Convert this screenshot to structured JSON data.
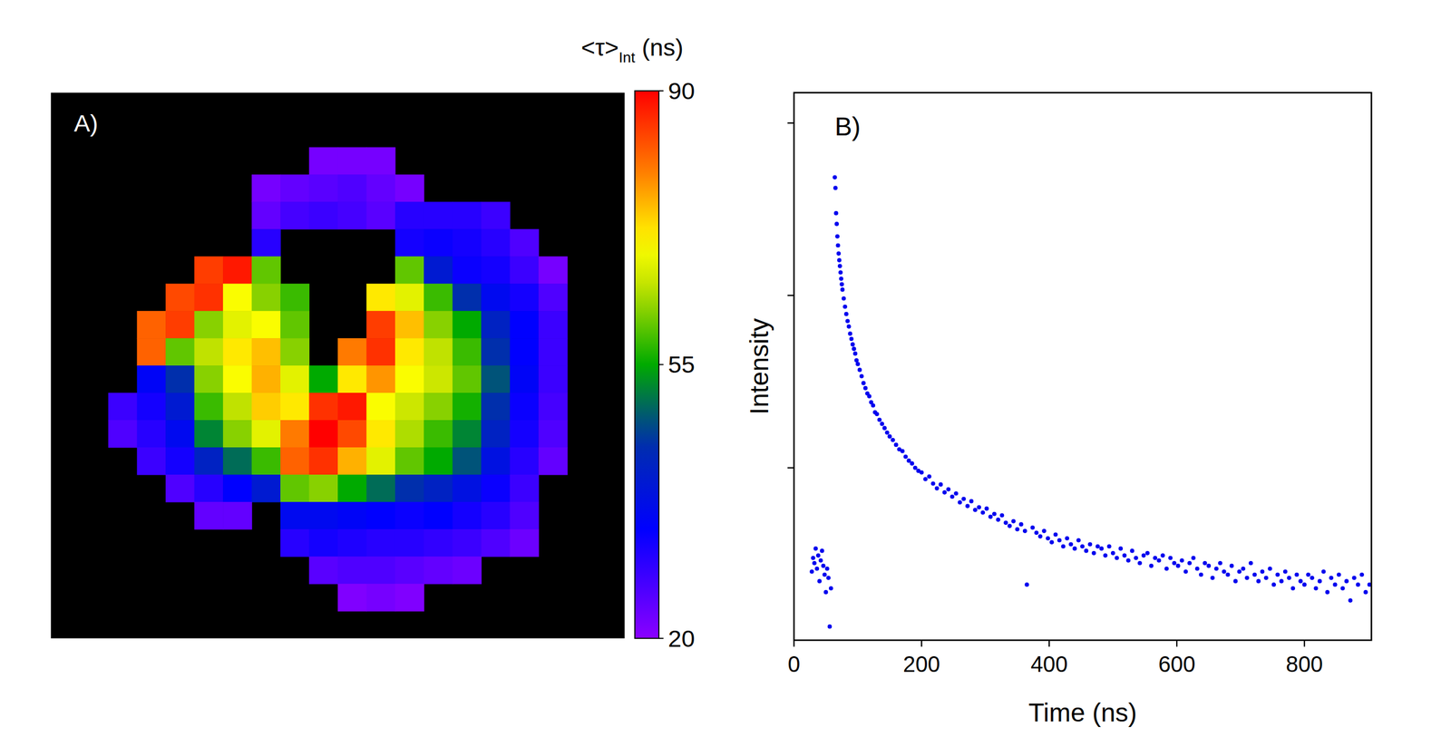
{
  "chart_data": [
    {
      "type": "heatmap",
      "title": "A)",
      "tick_labels": false,
      "colorbar": {
        "label": "<τ>",
        "label_sub": "Int",
        "label_unit": " (ns)",
        "range": [
          20,
          90
        ],
        "ticks": [
          20,
          55,
          90
        ]
      },
      "cells": [
        [
          null,
          null,
          null,
          null,
          null,
          null,
          null,
          null,
          null,
          null,
          null,
          null,
          null,
          null,
          null,
          null,
          null,
          null,
          null,
          null
        ],
        [
          null,
          null,
          null,
          null,
          null,
          null,
          null,
          null,
          null,
          null,
          null,
          null,
          null,
          null,
          null,
          null,
          null,
          null,
          null,
          null
        ],
        [
          null,
          null,
          null,
          null,
          null,
          null,
          null,
          null,
          null,
          22,
          22,
          22,
          null,
          null,
          null,
          null,
          null,
          null,
          null,
          null
        ],
        [
          null,
          null,
          null,
          null,
          null,
          null,
          null,
          22,
          24,
          25,
          26,
          24,
          22,
          null,
          null,
          null,
          null,
          null,
          null,
          null
        ],
        [
          null,
          null,
          null,
          null,
          null,
          null,
          null,
          24,
          27,
          28,
          27,
          25,
          30,
          30,
          30,
          28,
          null,
          null,
          null,
          null
        ],
        [
          null,
          null,
          null,
          null,
          null,
          null,
          null,
          30,
          null,
          null,
          null,
          null,
          32,
          33,
          32,
          30,
          26,
          null,
          null,
          null
        ],
        [
          null,
          null,
          null,
          null,
          null,
          85,
          88,
          60,
          null,
          null,
          null,
          null,
          60,
          40,
          33,
          32,
          28,
          22,
          null,
          null
        ],
        [
          null,
          null,
          null,
          null,
          84,
          86,
          70,
          62,
          58,
          null,
          null,
          72,
          68,
          58,
          45,
          36,
          32,
          26,
          null,
          null
        ],
        [
          null,
          null,
          null,
          82,
          85,
          62,
          68,
          70,
          60,
          null,
          null,
          85,
          75,
          62,
          55,
          42,
          34,
          28,
          null,
          null
        ],
        [
          null,
          null,
          null,
          82,
          60,
          65,
          72,
          75,
          62,
          null,
          80,
          86,
          72,
          65,
          58,
          45,
          34,
          28,
          null,
          null
        ],
        [
          null,
          null,
          null,
          35,
          45,
          62,
          70,
          76,
          68,
          55,
          72,
          78,
          70,
          66,
          60,
          48,
          35,
          28,
          null,
          null
        ],
        [
          null,
          null,
          28,
          32,
          40,
          58,
          65,
          74,
          72,
          86,
          88,
          70,
          66,
          62,
          56,
          45,
          33,
          27,
          null,
          null
        ],
        [
          null,
          null,
          26,
          30,
          36,
          52,
          62,
          68,
          80,
          90,
          84,
          72,
          64,
          58,
          52,
          42,
          32,
          26,
          null,
          null
        ],
        [
          null,
          null,
          null,
          28,
          32,
          42,
          50,
          58,
          82,
          86,
          76,
          68,
          60,
          55,
          48,
          38,
          30,
          24,
          null,
          null
        ],
        [
          null,
          null,
          null,
          null,
          26,
          30,
          34,
          40,
          60,
          62,
          55,
          50,
          45,
          42,
          38,
          33,
          28,
          null,
          null,
          null
        ],
        [
          null,
          null,
          null,
          null,
          null,
          24,
          24,
          null,
          36,
          36,
          35,
          34,
          33,
          34,
          32,
          30,
          26,
          null,
          null,
          null
        ],
        [
          null,
          null,
          null,
          null,
          null,
          null,
          null,
          null,
          30,
          32,
          31,
          30,
          30,
          29,
          28,
          26,
          23,
          null,
          null,
          null
        ],
        [
          null,
          null,
          null,
          null,
          null,
          null,
          null,
          null,
          null,
          25,
          26,
          26,
          25,
          24,
          23,
          null,
          null,
          null,
          null,
          null
        ],
        [
          null,
          null,
          null,
          null,
          null,
          null,
          null,
          null,
          null,
          null,
          21,
          22,
          21,
          null,
          null,
          null,
          null,
          null,
          null,
          null
        ],
        [
          null,
          null,
          null,
          null,
          null,
          null,
          null,
          null,
          null,
          null,
          null,
          null,
          null,
          null,
          null,
          null,
          null,
          null,
          null,
          null
        ]
      ]
    },
    {
      "type": "scatter",
      "title": "B)",
      "xlabel": "Time (ns)",
      "ylabel": "Intensity",
      "log": "y",
      "tick_labels": "x",
      "marker": "circle",
      "color": "#0000ee",
      "xlim": [
        0,
        905
      ],
      "xticks": [
        0,
        200,
        400,
        600,
        800
      ],
      "ylim": [
        1,
        1500
      ],
      "yticks": [
        10,
        100,
        1000
      ],
      "x": [
        28,
        30,
        32,
        34,
        36,
        38,
        40,
        42,
        44,
        46,
        48,
        50,
        52,
        54,
        56,
        58,
        64,
        65,
        66,
        67,
        68,
        69,
        70,
        71,
        72,
        73,
        74,
        75,
        76,
        78,
        80,
        82,
        84,
        86,
        88,
        90,
        92,
        94,
        96,
        98,
        100,
        103,
        106,
        109,
        112,
        115,
        118,
        121,
        124,
        127,
        130,
        134,
        138,
        142,
        146,
        150,
        155,
        160,
        165,
        170,
        175,
        180,
        185,
        190,
        195,
        200,
        206,
        212,
        218,
        224,
        230,
        236,
        242,
        248,
        254,
        260,
        266,
        272,
        278,
        284,
        290,
        296,
        302,
        308,
        314,
        320,
        326,
        332,
        338,
        344,
        350,
        356,
        362,
        365,
        374,
        380,
        386,
        392,
        398,
        404,
        410,
        416,
        422,
        428,
        434,
        440,
        446,
        452,
        458,
        464,
        470,
        476,
        482,
        488,
        494,
        500,
        506,
        512,
        518,
        524,
        530,
        536,
        542,
        548,
        554,
        560,
        566,
        572,
        578,
        584,
        590,
        596,
        602,
        608,
        614,
        620,
        626,
        632,
        638,
        644,
        650,
        656,
        662,
        668,
        674,
        680,
        686,
        692,
        698,
        704,
        710,
        716,
        722,
        728,
        734,
        740,
        746,
        752,
        758,
        764,
        770,
        776,
        782,
        788,
        794,
        800,
        806,
        812,
        818,
        824,
        830,
        836,
        842,
        848,
        854,
        860,
        866,
        872,
        878,
        884,
        890,
        896,
        902
      ],
      "values": [
        2.5,
        3.0,
        2.8,
        3.4,
        2.6,
        3.1,
        2.2,
        2.9,
        3.3,
        2.7,
        2.4,
        1.9,
        2.6,
        2.3,
        1.2,
        2.0,
        484,
        420,
        300,
        260,
        220,
        195,
        175,
        160,
        148,
        136,
        125,
        116,
        108,
        96,
        86,
        78,
        71,
        66,
        60,
        56,
        52,
        49,
        46,
        42,
        40,
        37,
        34,
        31,
        29,
        27,
        26,
        24,
        23,
        21,
        20.5,
        19,
        18,
        17,
        16,
        15.2,
        14.5,
        13.6,
        12.8,
        12.5,
        11.6,
        11.0,
        10.6,
        10.0,
        9.6,
        9.4,
        8.6,
        8.9,
        8.1,
        7.6,
        8.0,
        7.2,
        7.5,
        6.8,
        7.1,
        6.3,
        6.6,
        6.0,
        6.4,
        5.7,
        5.9,
        5.5,
        5.8,
        5.2,
        5.4,
        5.0,
        5.3,
        4.8,
        4.6,
        4.9,
        4.4,
        4.7,
        4.3,
        2.1,
        4.5,
        4.2,
        4.0,
        4.3,
        3.9,
        3.7,
        4.1,
        3.8,
        3.5,
        3.9,
        3.6,
        3.4,
        3.8,
        3.5,
        3.3,
        3.6,
        3.2,
        3.5,
        3.4,
        3.1,
        3.5,
        3.2,
        3.0,
        3.4,
        3.1,
        2.9,
        3.3,
        3.0,
        2.8,
        3.1,
        3.2,
        2.7,
        3.0,
        2.9,
        3.1,
        2.6,
        3.0,
        2.8,
        2.7,
        2.9,
        2.5,
        2.8,
        3.0,
        2.6,
        2.4,
        2.8,
        2.7,
        2.3,
        2.6,
        2.8,
        2.5,
        2.4,
        2.7,
        2.2,
        2.5,
        2.6,
        2.3,
        2.8,
        2.4,
        2.2,
        2.5,
        2.3,
        2.6,
        2.1,
        2.4,
        2.2,
        2.5,
        2.3,
        2.0,
        2.4,
        2.2,
        2.1,
        2.4,
        2.3,
        2.0,
        2.2,
        2.5,
        1.9,
        2.3,
        2.1,
        2.4,
        2.0,
        2.2,
        1.7,
        2.3,
        2.1,
        2.4,
        1.9,
        2.1
      ]
    }
  ]
}
